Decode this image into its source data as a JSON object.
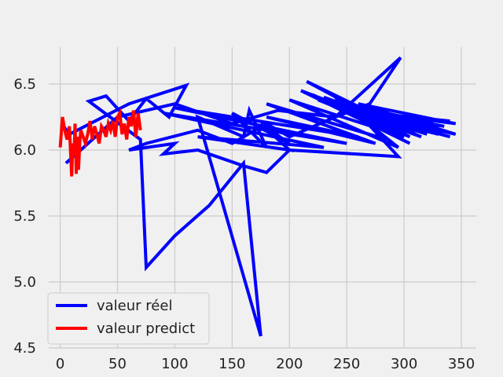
{
  "chart_data": {
    "type": "line",
    "title": "",
    "xlabel": "",
    "ylabel": "",
    "xlim": [
      -10,
      363
    ],
    "ylim": [
      4.5,
      6.78
    ],
    "x_ticks": [
      0,
      50,
      100,
      150,
      200,
      250,
      300,
      350
    ],
    "y_ticks": [
      4.5,
      5.0,
      5.5,
      6.0,
      6.5
    ],
    "x_tick_labels": [
      "0",
      "50",
      "100",
      "150",
      "200",
      "250",
      "300",
      "350"
    ],
    "y_tick_labels": [
      "4.5",
      "5.0",
      "5.5",
      "6.0",
      "6.5"
    ],
    "grid": true,
    "legend_position": "lower-left",
    "series": [
      {
        "name": "valeur réel",
        "color": "#0000ff",
        "x": [
          3,
          8,
          60,
          110,
          95,
          75,
          60,
          40,
          25,
          70,
          75,
          100,
          130,
          160,
          175,
          120,
          160,
          165,
          180,
          150,
          200,
          175,
          200,
          120,
          230,
          90,
          250,
          100,
          260,
          180,
          275,
          180,
          285,
          240,
          295,
          200,
          300,
          220,
          305,
          210,
          310,
          215,
          305,
          225,
          320,
          230,
          300,
          235,
          315,
          240,
          325,
          245,
          325,
          250,
          330,
          255,
          335,
          250,
          340,
          255,
          345,
          260,
          345,
          250,
          340,
          260,
          295,
          200,
          180,
          160,
          120,
          90,
          100,
          60,
          75,
          120,
          150,
          180,
          200,
          240,
          270,
          297,
          240,
          190,
          150,
          100,
          50,
          5
        ],
        "y": [
          6.18,
          6.12,
          6.35,
          6.49,
          6.25,
          6.39,
          6.22,
          6.41,
          6.37,
          6.08,
          5.11,
          5.35,
          5.58,
          5.9,
          4.59,
          6.25,
          6.1,
          6.3,
          6.02,
          6.28,
          6.05,
          6.2,
          6.0,
          6.1,
          6.02,
          6.28,
          6.05,
          6.32,
          6.1,
          6.25,
          6.05,
          6.35,
          6.08,
          6.4,
          6.02,
          6.38,
          6.1,
          6.42,
          6.05,
          6.45,
          6.12,
          6.52,
          6.1,
          6.38,
          6.12,
          6.4,
          6.15,
          6.35,
          6.1,
          6.38,
          6.18,
          6.3,
          6.2,
          6.35,
          6.12,
          6.28,
          6.18,
          6.32,
          6.1,
          6.3,
          6.2,
          6.35,
          6.12,
          6.3,
          6.22,
          6.28,
          5.95,
          6.0,
          5.83,
          5.88,
          6.0,
          5.97,
          6.05,
          6.0,
          6.05,
          6.15,
          6.05,
          6.2,
          6.1,
          6.25,
          6.35,
          6.7,
          6.25,
          6.3,
          6.2,
          6.35,
          6.25,
          5.9
        ]
      },
      {
        "name": "valeur predict",
        "color": "#ff0000",
        "x": [
          0,
          2,
          4,
          6,
          8,
          10,
          11,
          12,
          13,
          14,
          15,
          16,
          17,
          18,
          20,
          22,
          24,
          26,
          28,
          30,
          32,
          34,
          36,
          38,
          40,
          42,
          44,
          46,
          48,
          50,
          52,
          54,
          56,
          58,
          60,
          62,
          64,
          66,
          68,
          70
        ],
        "y": [
          6.02,
          6.25,
          6.15,
          6.08,
          6.18,
          5.8,
          6.05,
          5.95,
          6.2,
          5.82,
          6.1,
          5.85,
          6.05,
          6.15,
          6.1,
          6.05,
          6.12,
          6.22,
          6.08,
          6.18,
          6.12,
          6.05,
          6.18,
          6.15,
          6.1,
          6.2,
          6.15,
          6.22,
          6.1,
          6.25,
          6.28,
          6.12,
          6.2,
          6.08,
          6.25,
          6.18,
          6.3,
          6.1,
          6.28,
          6.15
        ]
      }
    ]
  }
}
